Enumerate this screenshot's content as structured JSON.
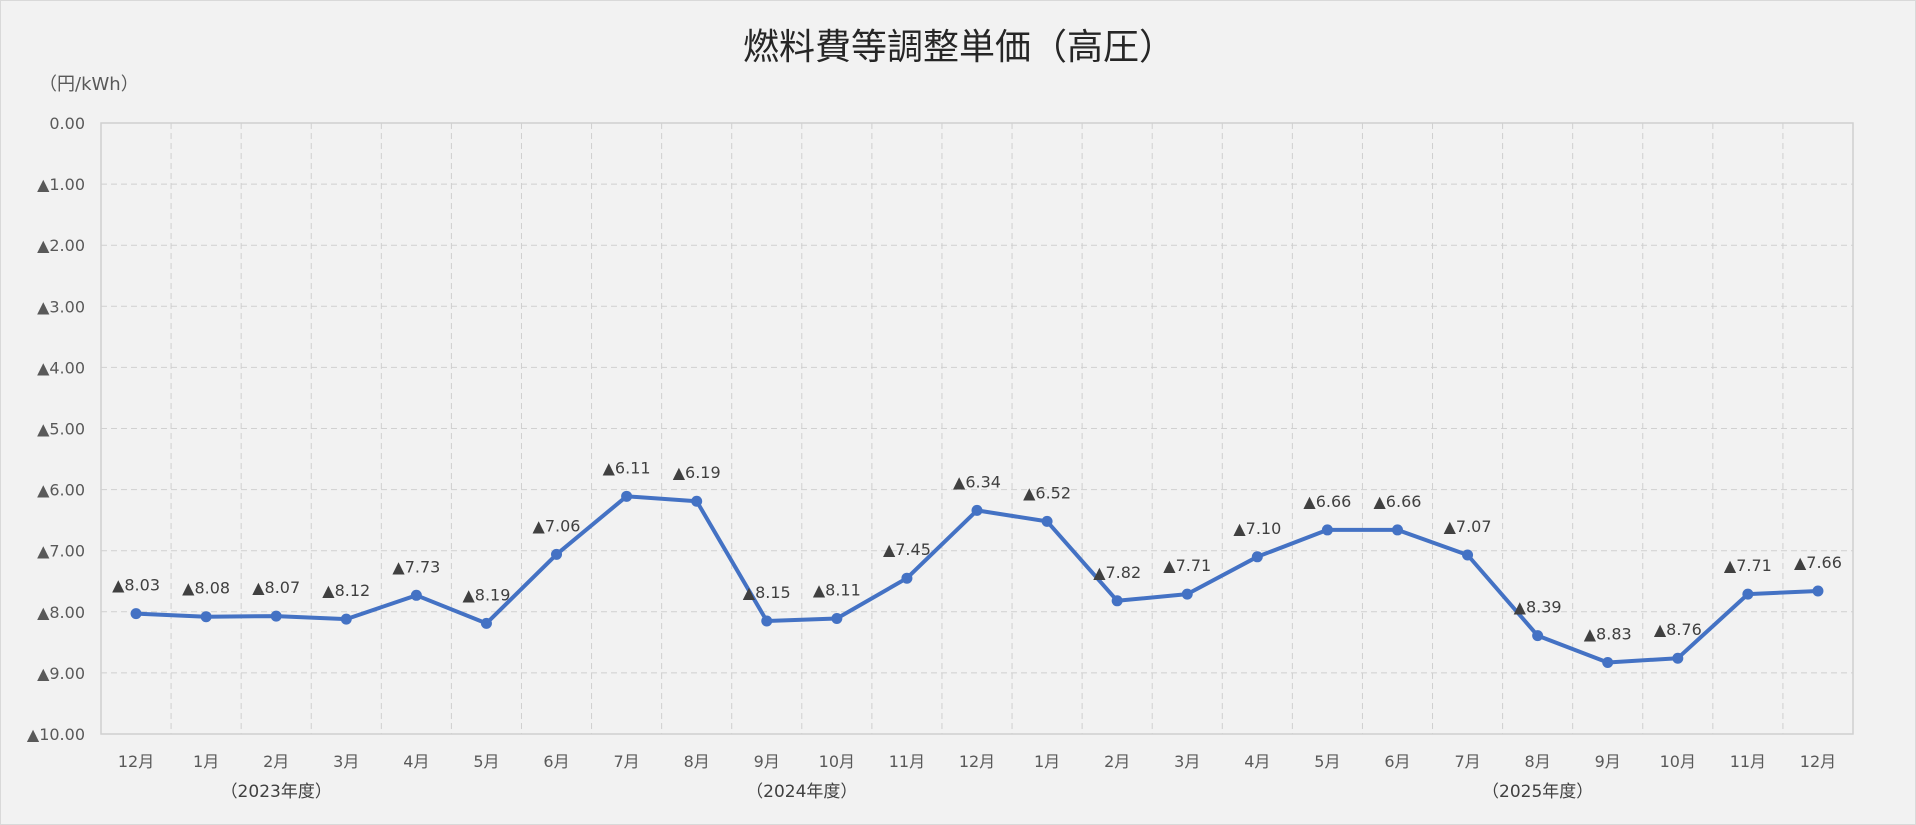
{
  "chart_data": {
    "type": "line",
    "title": "燃料費等調整単価（高圧）",
    "unit_label": "（円/kWh）",
    "ylim": [
      -10,
      0
    ],
    "yticks": [
      "0.00",
      "▲1.00",
      "▲2.00",
      "▲3.00",
      "▲4.00",
      "▲5.00",
      "▲6.00",
      "▲7.00",
      "▲8.00",
      "▲9.00",
      "▲10.00"
    ],
    "categories": [
      "12月",
      "1月",
      "2月",
      "3月",
      "4月",
      "5月",
      "6月",
      "7月",
      "8月",
      "9月",
      "10月",
      "11月",
      "12月",
      "1月",
      "2月",
      "3月",
      "4月",
      "5月",
      "6月",
      "7月",
      "8月",
      "9月",
      "10月",
      "11月",
      "12月"
    ],
    "values": [
      -8.03,
      -8.08,
      -8.07,
      -8.12,
      -7.73,
      -8.19,
      -7.06,
      -6.11,
      -6.19,
      -8.15,
      -8.11,
      -7.45,
      -6.34,
      -6.52,
      -7.82,
      -7.71,
      -7.1,
      -6.66,
      -6.66,
      -7.07,
      -8.39,
      -8.83,
      -8.76,
      -7.71,
      -7.66
    ],
    "data_labels": [
      "▲8.03",
      "▲8.08",
      "▲8.07",
      "▲8.12",
      "▲7.73",
      "▲8.19",
      "▲7.06",
      "▲6.11",
      "▲6.19",
      "▲8.15",
      "▲8.11",
      "▲7.45",
      "▲6.34",
      "▲6.52",
      "▲7.82",
      "▲7.71",
      "▲7.10",
      "▲6.66",
      "▲6.66",
      "▲7.07",
      "▲8.39",
      "▲8.83",
      "▲8.76",
      "▲7.71",
      "▲7.66"
    ],
    "groups": [
      {
        "label": "（2023年度）",
        "start": 1,
        "end": 3
      },
      {
        "label": "（2024年度）",
        "start": 4,
        "end": 15
      },
      {
        "label": "（2025年度）",
        "start": 16,
        "end": 24
      }
    ],
    "grid": true,
    "legend": "none",
    "colors": {
      "series": "#4472c4",
      "background": "#f2f2f2",
      "grid": "#d0d0d0"
    }
  }
}
